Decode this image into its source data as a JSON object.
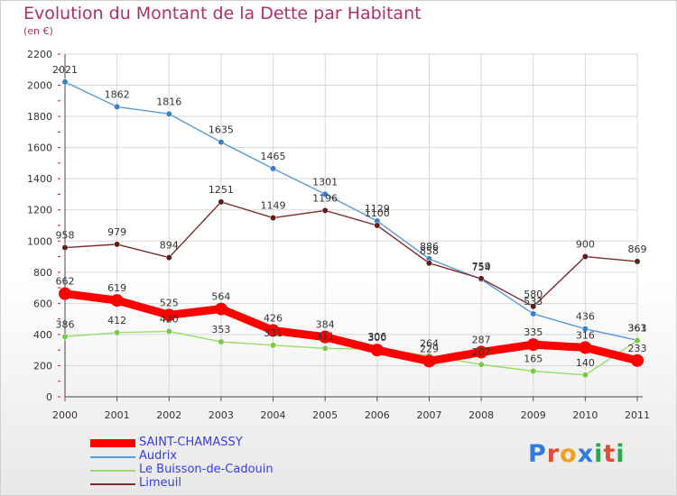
{
  "title": "Evolution du Montant de la Dette par Habitant",
  "unit": "(en €)",
  "logo": {
    "text": "Proxiti",
    "colors": [
      "#2f7de0",
      "#e34a3a",
      "#f0a020",
      "#2f7de0",
      "#2aa84a",
      "#e34a3a",
      "#2aa84a"
    ]
  },
  "chart_data": {
    "type": "line",
    "title": "Evolution du Montant de la Dette par Habitant",
    "ylabel": "(en €)",
    "xlabel": "",
    "x": [
      "2000",
      "2001",
      "2002",
      "2003",
      "2004",
      "2005",
      "2006",
      "2007",
      "2008",
      "2009",
      "2010",
      "2011"
    ],
    "ylim": [
      0,
      2200
    ],
    "yticks": [
      0,
      200,
      400,
      600,
      800,
      1000,
      1200,
      1400,
      1600,
      1800,
      2000,
      2200
    ],
    "grid": true,
    "legend_position": "bottom-left",
    "series": [
      {
        "name": "Audrix",
        "color": "#5b9bd5",
        "marker": "#3a7fc4",
        "values": [
          2021,
          1862,
          1816,
          1635,
          1465,
          1301,
          1129,
          886,
          754,
          533,
          436,
          363
        ]
      },
      {
        "name": "Limeuil",
        "color": "#7a2d2d",
        "marker": "#5e1e1e",
        "values": [
          958,
          979,
          894,
          1251,
          1149,
          1196,
          1100,
          858,
          759,
          580,
          900,
          869
        ]
      },
      {
        "name": "Le Buisson-de-Cadouin",
        "color": "#99dd66",
        "marker": "#7ac943",
        "values": [
          386,
          412,
          420,
          353,
          331,
          311,
          306,
          264,
          207,
          165,
          140,
          361
        ]
      },
      {
        "name": "SAINT-CHAMASSY",
        "color": "#ff0000",
        "marker": "#ff0000",
        "values": [
          662,
          619,
          525,
          564,
          426,
          384,
          300,
          229,
          287,
          335,
          316,
          233
        ]
      }
    ],
    "legend_order": [
      "SAINT-CHAMASSY",
      "Audrix",
      "Le Buisson-de-Cadouin",
      "Limeuil"
    ]
  }
}
